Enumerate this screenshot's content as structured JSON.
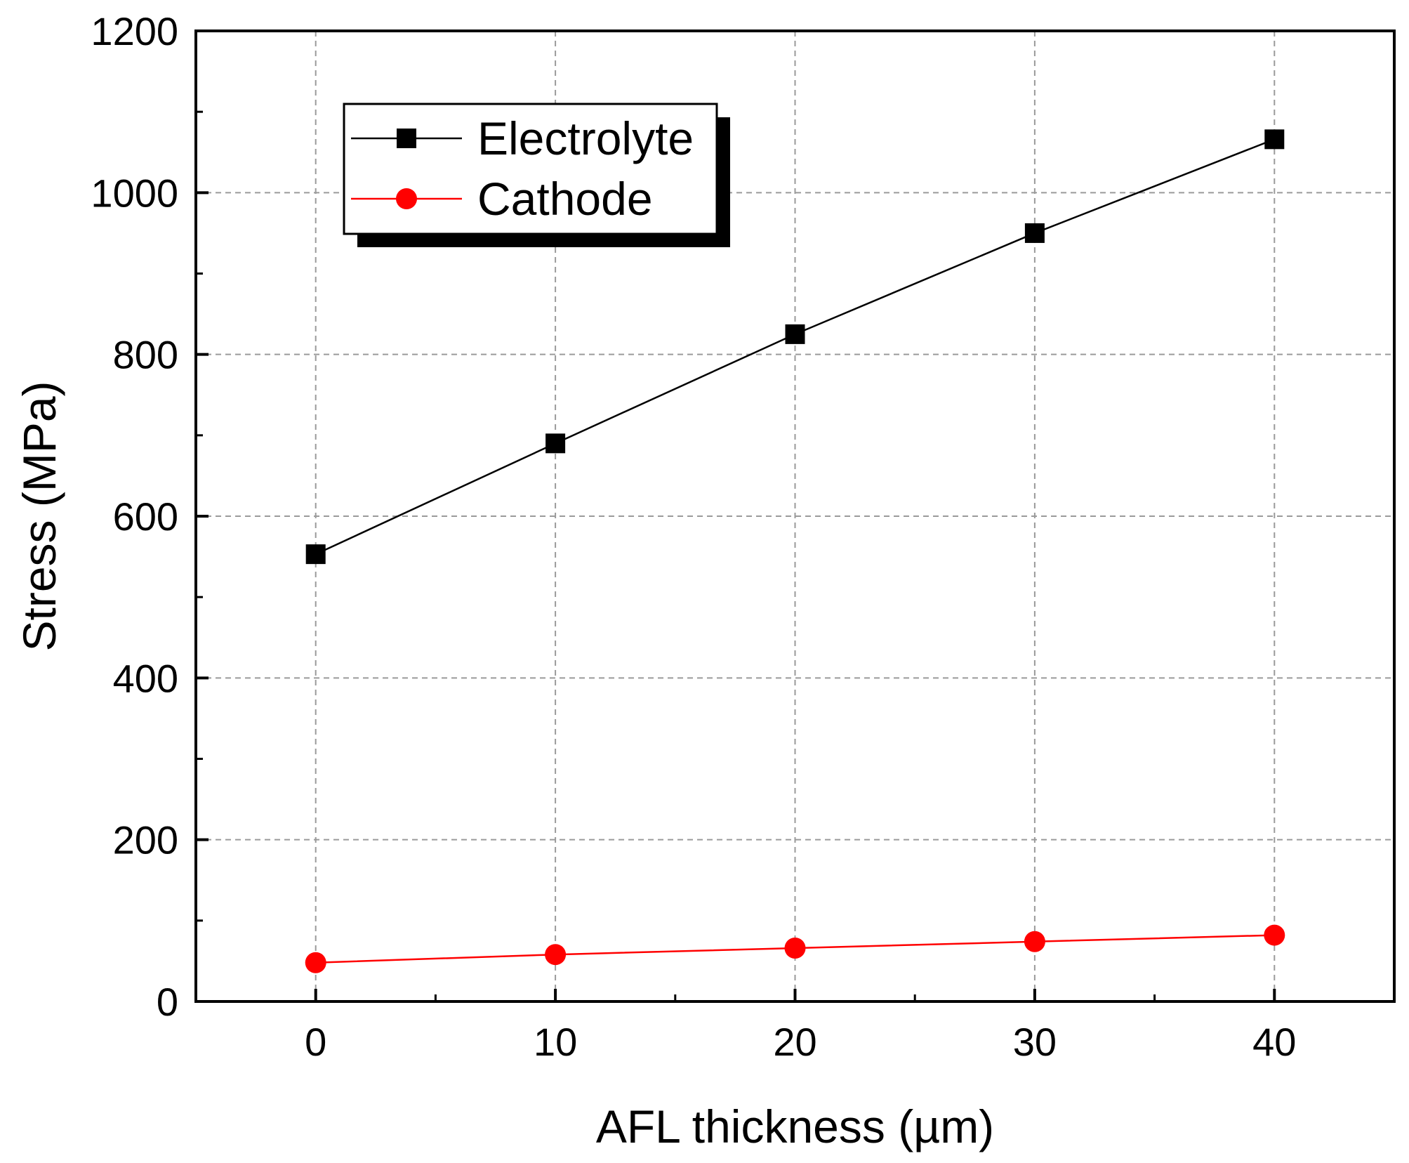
{
  "chart_data": {
    "type": "line",
    "title": "",
    "xlabel": "AFL thickness (µm)",
    "ylabel": "Stress (MPa)",
    "xlim": [
      -5,
      45
    ],
    "ylim": [
      0,
      1200
    ],
    "xticks": [
      0,
      10,
      20,
      30,
      40
    ],
    "xtick_labels": [
      "0",
      "10",
      "20",
      "30",
      "40"
    ],
    "yticks": [
      0,
      200,
      400,
      600,
      800,
      1000,
      1200
    ],
    "ytick_labels": [
      "0",
      "200",
      "400",
      "600",
      "800",
      "1000",
      "1200"
    ],
    "grid": true,
    "legend_position": "top-left",
    "x": [
      0,
      10,
      20,
      30,
      40
    ],
    "series": [
      {
        "name": "Electrolyte",
        "marker": "square",
        "color": "#000000",
        "values": [
          553,
          690,
          825,
          950,
          1066
        ]
      },
      {
        "name": "Cathode",
        "marker": "circle",
        "color": "#ff0000",
        "values": [
          48,
          58,
          66,
          74,
          82
        ]
      }
    ]
  }
}
